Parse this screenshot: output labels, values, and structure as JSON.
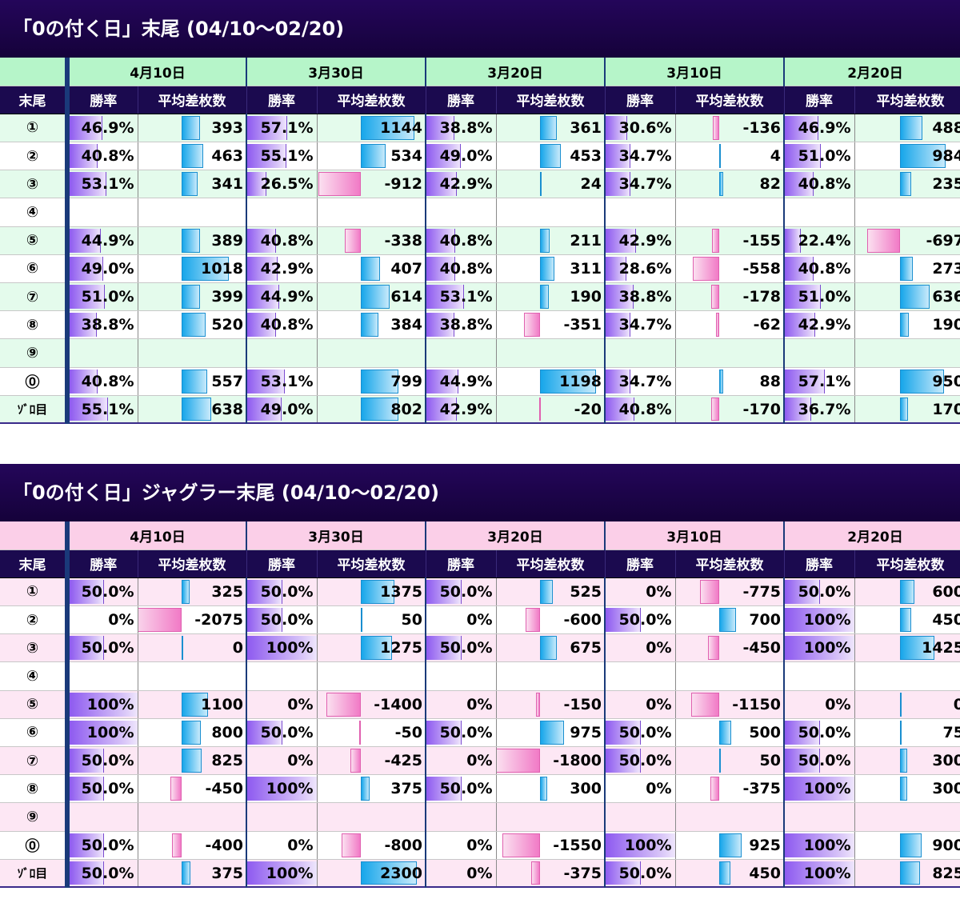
{
  "tables": [
    {
      "title": "「0の付く日」末尾 (04/10～02/20)",
      "tail_header": "末尾",
      "rate_header": "勝率",
      "diff_header": "平均差枚数",
      "dates": [
        "4月10日",
        "3月30日",
        "3月20日",
        "3月10日",
        "2月20日"
      ],
      "diff_max": 1200,
      "rows": [
        {
          "label": "①",
          "cells": [
            [
              "46.9%",
              46.9,
              "393",
              393
            ],
            [
              "57.1%",
              57.1,
              "1144",
              1144
            ],
            [
              "38.8%",
              38.8,
              "361",
              361
            ],
            [
              "30.6%",
              30.6,
              "-136",
              -136
            ],
            [
              "46.9%",
              46.9,
              "488",
              488
            ]
          ]
        },
        {
          "label": "②",
          "cells": [
            [
              "40.8%",
              40.8,
              "463",
              463
            ],
            [
              "55.1%",
              55.1,
              "534",
              534
            ],
            [
              "49.0%",
              49.0,
              "453",
              453
            ],
            [
              "34.7%",
              34.7,
              "4",
              4
            ],
            [
              "51.0%",
              51.0,
              "984",
              984
            ]
          ]
        },
        {
          "label": "③",
          "cells": [
            [
              "53.1%",
              53.1,
              "341",
              341
            ],
            [
              "26.5%",
              26.5,
              "-912",
              -912
            ],
            [
              "42.9%",
              42.9,
              "24",
              24
            ],
            [
              "34.7%",
              34.7,
              "82",
              82
            ],
            [
              "40.8%",
              40.8,
              "235",
              235
            ]
          ]
        },
        {
          "label": "④",
          "cells": [
            [
              "",
              0,
              "",
              0
            ],
            [
              "",
              0,
              "",
              0
            ],
            [
              "",
              0,
              "",
              0
            ],
            [
              "",
              0,
              "",
              0
            ],
            [
              "",
              0,
              "",
              0
            ]
          ]
        },
        {
          "label": "⑤",
          "cells": [
            [
              "44.9%",
              44.9,
              "389",
              389
            ],
            [
              "40.8%",
              40.8,
              "-338",
              -338
            ],
            [
              "40.8%",
              40.8,
              "211",
              211
            ],
            [
              "42.9%",
              42.9,
              "-155",
              -155
            ],
            [
              "22.4%",
              22.4,
              "-697",
              -697
            ]
          ]
        },
        {
          "label": "⑥",
          "cells": [
            [
              "49.0%",
              49.0,
              "1018",
              1018
            ],
            [
              "42.9%",
              42.9,
              "407",
              407
            ],
            [
              "40.8%",
              40.8,
              "311",
              311
            ],
            [
              "28.6%",
              28.6,
              "-558",
              -558
            ],
            [
              "40.8%",
              40.8,
              "273",
              273
            ]
          ]
        },
        {
          "label": "⑦",
          "cells": [
            [
              "51.0%",
              51.0,
              "399",
              399
            ],
            [
              "44.9%",
              44.9,
              "614",
              614
            ],
            [
              "53.1%",
              53.1,
              "190",
              190
            ],
            [
              "38.8%",
              38.8,
              "-178",
              -178
            ],
            [
              "51.0%",
              51.0,
              "636",
              636
            ]
          ]
        },
        {
          "label": "⑧",
          "cells": [
            [
              "38.8%",
              38.8,
              "520",
              520
            ],
            [
              "40.8%",
              40.8,
              "384",
              384
            ],
            [
              "38.8%",
              38.8,
              "-351",
              -351
            ],
            [
              "34.7%",
              34.7,
              "-62",
              -62
            ],
            [
              "42.9%",
              42.9,
              "190",
              190
            ]
          ]
        },
        {
          "label": "⑨",
          "cells": [
            [
              "",
              0,
              "",
              0
            ],
            [
              "",
              0,
              "",
              0
            ],
            [
              "",
              0,
              "",
              0
            ],
            [
              "",
              0,
              "",
              0
            ],
            [
              "",
              0,
              "",
              0
            ]
          ]
        },
        {
          "label": "⓪",
          "cells": [
            [
              "40.8%",
              40.8,
              "557",
              557
            ],
            [
              "53.1%",
              53.1,
              "799",
              799
            ],
            [
              "44.9%",
              44.9,
              "1198",
              1198
            ],
            [
              "34.7%",
              34.7,
              "88",
              88
            ],
            [
              "57.1%",
              57.1,
              "950",
              950
            ]
          ]
        },
        {
          "label": "ｿﾞﾛ目",
          "solo": true,
          "cells": [
            [
              "55.1%",
              55.1,
              "638",
              638
            ],
            [
              "49.0%",
              49.0,
              "802",
              802
            ],
            [
              "42.9%",
              42.9,
              "-20",
              -20
            ],
            [
              "40.8%",
              40.8,
              "-170",
              -170
            ],
            [
              "36.7%",
              36.7,
              "170",
              170
            ]
          ]
        }
      ]
    },
    {
      "title": "「0の付く日」ジャグラー末尾 (04/10～02/20)",
      "tail_header": "末尾",
      "rate_header": "勝率",
      "diff_header": "平均差枚数",
      "dates": [
        "4月10日",
        "3月30日",
        "3月20日",
        "3月10日",
        "2月20日"
      ],
      "diff_max": 2300,
      "rows": [
        {
          "label": "①",
          "cells": [
            [
              "50.0%",
              50,
              "325",
              325
            ],
            [
              "50.0%",
              50,
              "1375",
              1375
            ],
            [
              "50.0%",
              50,
              "525",
              525
            ],
            [
              "0%",
              0,
              "-775",
              -775
            ],
            [
              "50.0%",
              50,
              "600",
              600
            ]
          ]
        },
        {
          "label": "②",
          "cells": [
            [
              "0%",
              0,
              "-2075",
              -2075
            ],
            [
              "50.0%",
              50,
              "50",
              50
            ],
            [
              "0%",
              0,
              "-600",
              -600
            ],
            [
              "50.0%",
              50,
              "700",
              700
            ],
            [
              "100%",
              100,
              "450",
              450
            ]
          ]
        },
        {
          "label": "③",
          "cells": [
            [
              "50.0%",
              50,
              "0",
              0
            ],
            [
              "100%",
              100,
              "1275",
              1275
            ],
            [
              "50.0%",
              50,
              "675",
              675
            ],
            [
              "0%",
              0,
              "-450",
              -450
            ],
            [
              "100%",
              100,
              "1425",
              1425
            ]
          ]
        },
        {
          "label": "④",
          "cells": [
            [
              "",
              0,
              "",
              0
            ],
            [
              "",
              0,
              "",
              0
            ],
            [
              "",
              0,
              "",
              0
            ],
            [
              "",
              0,
              "",
              0
            ],
            [
              "",
              0,
              "",
              0
            ]
          ]
        },
        {
          "label": "⑤",
          "cells": [
            [
              "100%",
              100,
              "1100",
              1100
            ],
            [
              "0%",
              0,
              "-1400",
              -1400
            ],
            [
              "0%",
              0,
              "-150",
              -150
            ],
            [
              "0%",
              0,
              "-1150",
              -1150
            ],
            [
              "0%",
              0,
              "0",
              0
            ]
          ]
        },
        {
          "label": "⑥",
          "cells": [
            [
              "100%",
              100,
              "800",
              800
            ],
            [
              "50.0%",
              50,
              "-50",
              -50
            ],
            [
              "50.0%",
              50,
              "975",
              975
            ],
            [
              "50.0%",
              50,
              "500",
              500
            ],
            [
              "50.0%",
              50,
              "75",
              75
            ]
          ]
        },
        {
          "label": "⑦",
          "cells": [
            [
              "50.0%",
              50,
              "825",
              825
            ],
            [
              "0%",
              0,
              "-425",
              -425
            ],
            [
              "0%",
              0,
              "-1800",
              -1800
            ],
            [
              "50.0%",
              50,
              "50",
              50
            ],
            [
              "50.0%",
              50,
              "300",
              300
            ]
          ]
        },
        {
          "label": "⑧",
          "cells": [
            [
              "50.0%",
              50,
              "-450",
              -450
            ],
            [
              "100%",
              100,
              "375",
              375
            ],
            [
              "50.0%",
              50,
              "300",
              300
            ],
            [
              "0%",
              0,
              "-375",
              -375
            ],
            [
              "100%",
              100,
              "300",
              300
            ]
          ]
        },
        {
          "label": "⑨",
          "cells": [
            [
              "",
              0,
              "",
              0
            ],
            [
              "",
              0,
              "",
              0
            ],
            [
              "",
              0,
              "",
              0
            ],
            [
              "",
              0,
              "",
              0
            ],
            [
              "",
              0,
              "",
              0
            ]
          ]
        },
        {
          "label": "⓪",
          "cells": [
            [
              "50.0%",
              50,
              "-400",
              -400
            ],
            [
              "0%",
              0,
              "-800",
              -800
            ],
            [
              "0%",
              0,
              "-1550",
              -1550
            ],
            [
              "100%",
              100,
              "925",
              925
            ],
            [
              "100%",
              100,
              "900",
              900
            ]
          ]
        },
        {
          "label": "ｿﾞﾛ目",
          "solo": true,
          "cells": [
            [
              "50.0%",
              50,
              "375",
              375
            ],
            [
              "100%",
              100,
              "2300",
              2300
            ],
            [
              "0%",
              0,
              "-375",
              -375
            ],
            [
              "50.0%",
              50,
              "450",
              450
            ],
            [
              "100%",
              100,
              "825",
              825
            ]
          ]
        }
      ]
    }
  ]
}
